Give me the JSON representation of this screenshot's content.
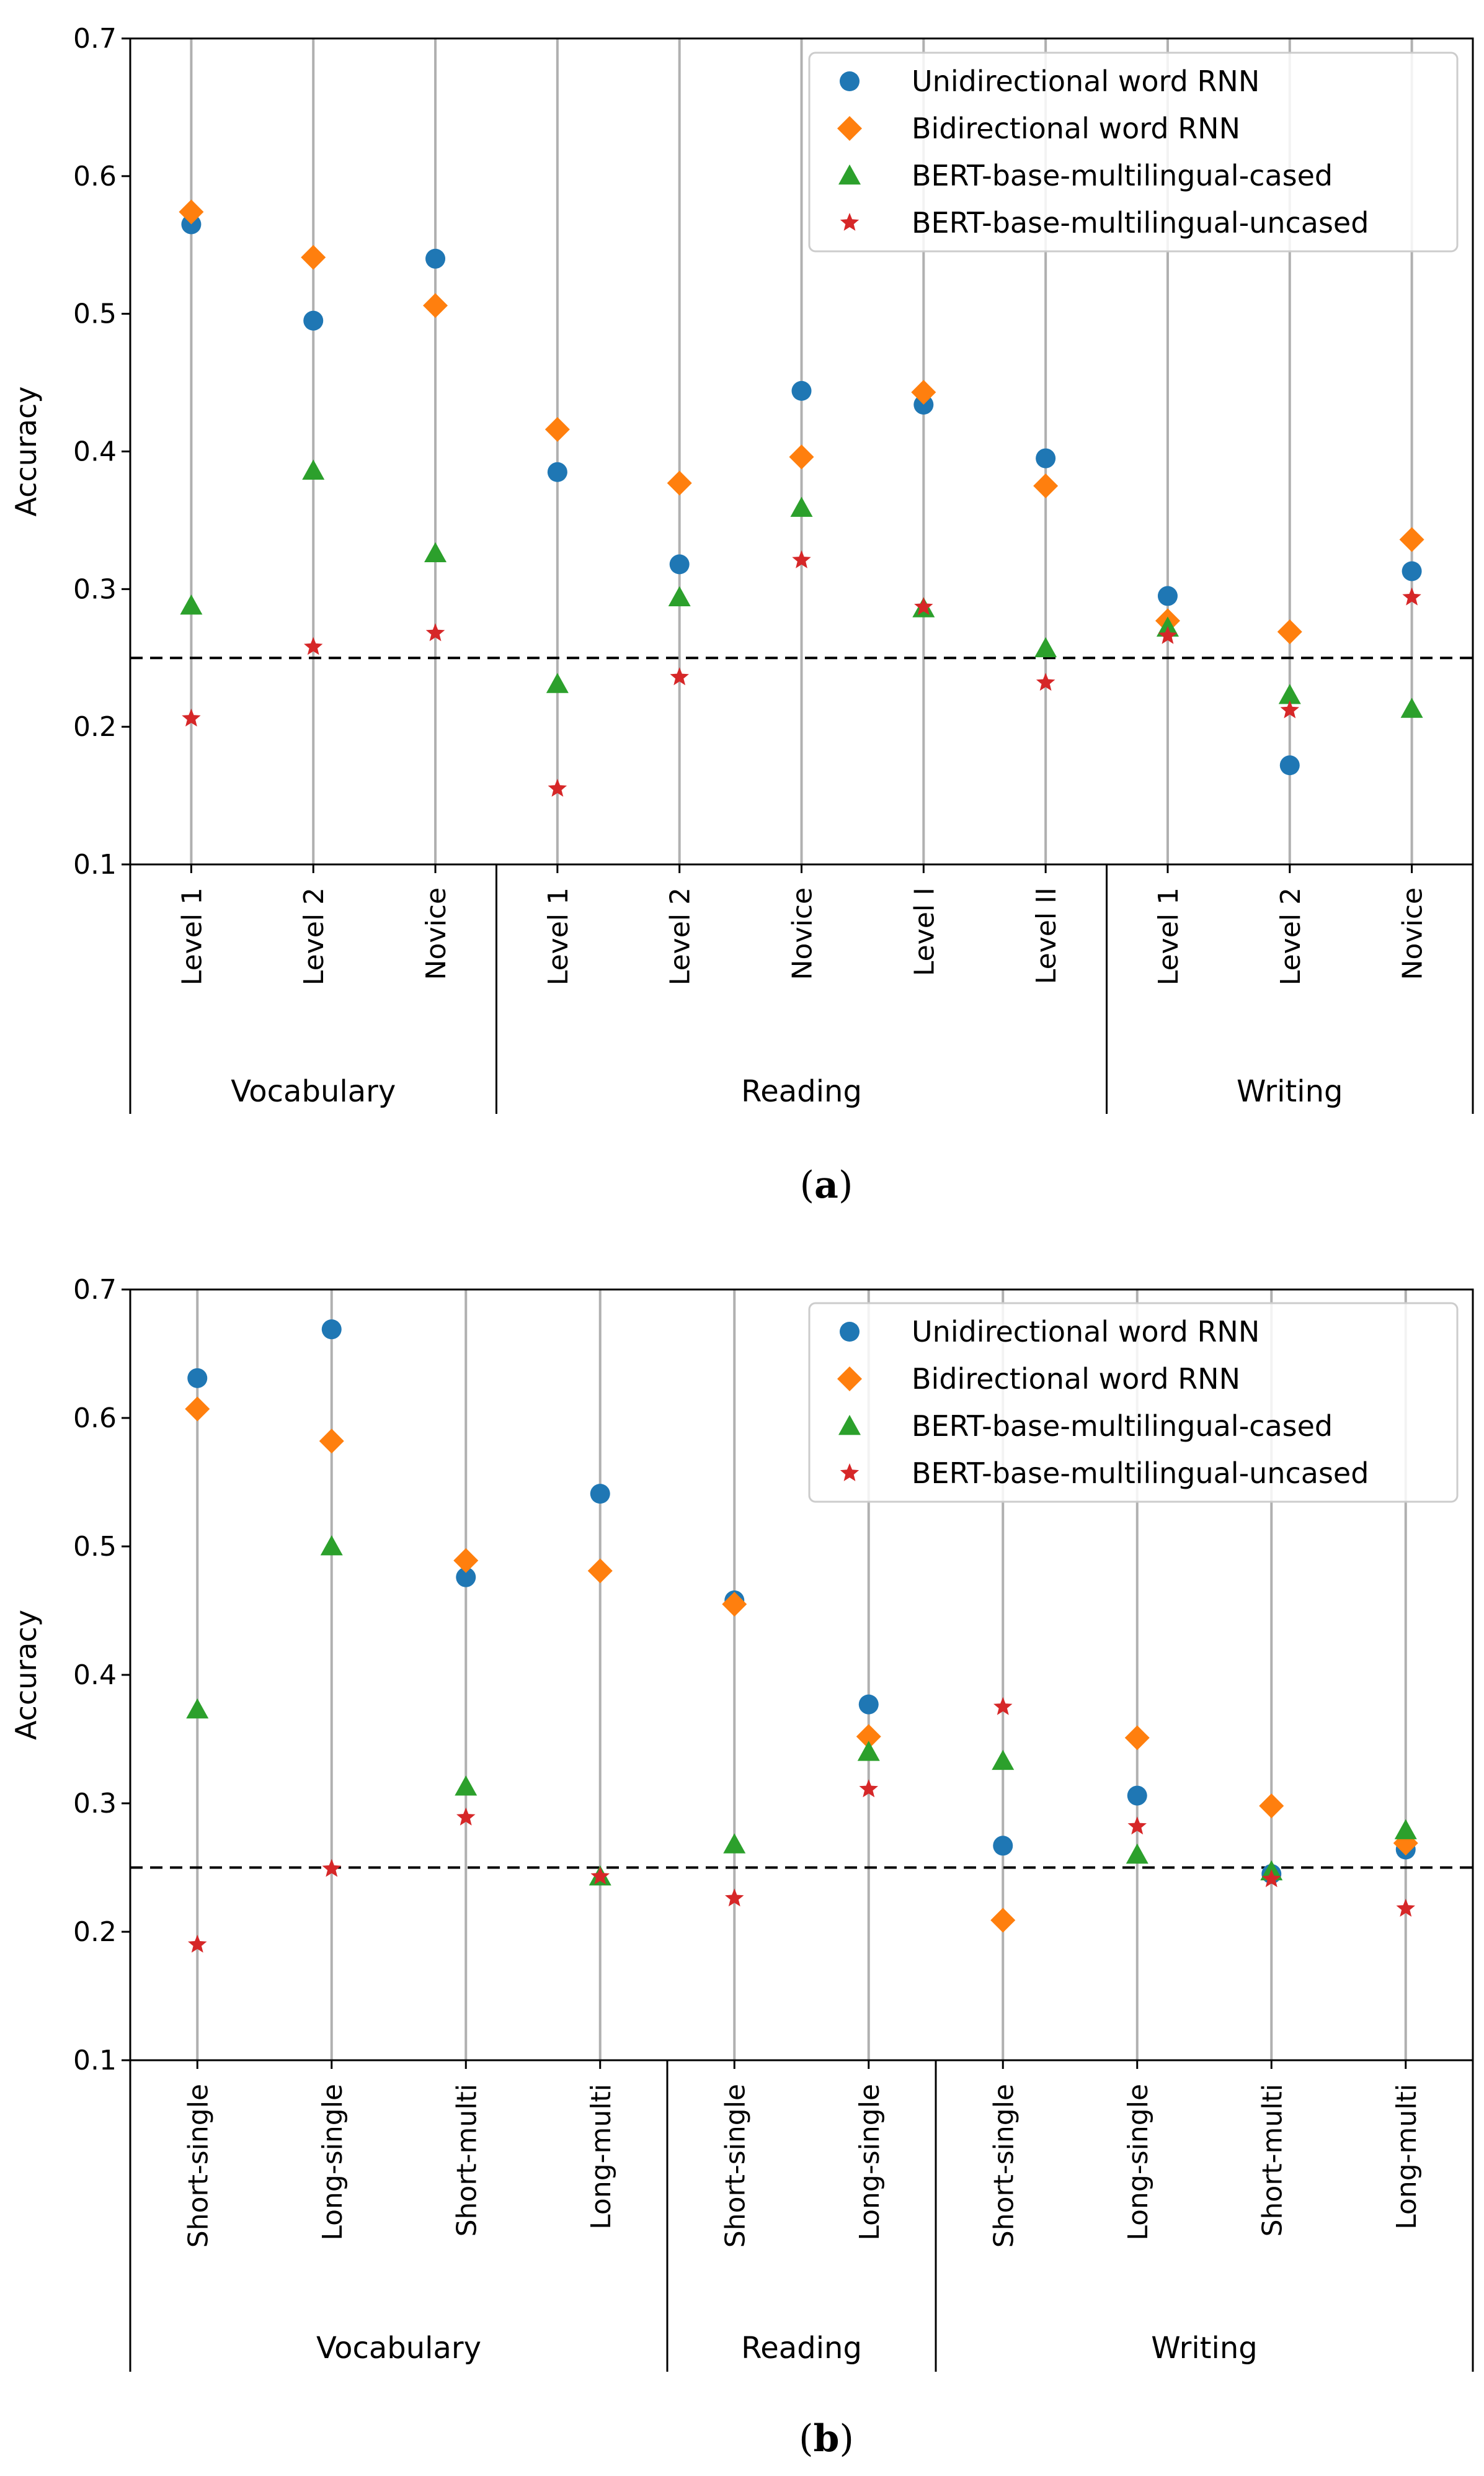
{
  "chart_data": [
    {
      "type": "scatter",
      "panel": "a",
      "caption": "(a)",
      "caption_letter": "a",
      "xlabel": "",
      "ylabel": "Accuracy",
      "ylim": [
        0.1,
        0.7
      ],
      "yticks": [
        0.1,
        0.2,
        0.3,
        0.4,
        0.5,
        0.6,
        0.7
      ],
      "ytick_labels": [
        "0.1",
        "0.2",
        "0.3",
        "0.4",
        "0.5",
        "0.6",
        "0.7"
      ],
      "baseline": 0.25,
      "grid": "vertical",
      "legend_position": "top-right",
      "categories": [
        "Level 1",
        "Level 2",
        "Novice",
        "Level 1",
        "Level 2",
        "Novice",
        "Level I",
        "Level II",
        "Level 1",
        "Level 2",
        "Novice"
      ],
      "groups": [
        {
          "name": "Vocabulary",
          "count": 3
        },
        {
          "name": "Reading",
          "count": 5
        },
        {
          "name": "Writing",
          "count": 3
        }
      ],
      "series": [
        {
          "name": "Unidirectional word RNN",
          "marker": "circle",
          "color": "#1f77b4",
          "values": [
            0.565,
            0.495,
            0.54,
            0.385,
            0.318,
            0.444,
            0.434,
            0.395,
            0.295,
            0.172,
            0.313
          ]
        },
        {
          "name": "Bidirectional word RNN",
          "marker": "diamond",
          "color": "#ff7f0e",
          "values": [
            0.574,
            0.541,
            0.506,
            0.416,
            0.377,
            0.396,
            0.443,
            0.375,
            0.277,
            0.269,
            0.336
          ]
        },
        {
          "name": "BERT-base-multilingual-cased",
          "marker": "triangle",
          "color": "#2ca02c",
          "values": [
            0.288,
            0.386,
            0.326,
            0.231,
            0.294,
            0.359,
            0.286,
            0.257,
            0.272,
            0.223,
            0.213
          ]
        },
        {
          "name": "BERT-base-multilingual-uncased",
          "marker": "star",
          "color": "#d62728",
          "values": [
            0.206,
            0.258,
            0.268,
            0.155,
            0.236,
            0.321,
            0.287,
            0.232,
            0.266,
            0.212,
            0.294
          ]
        }
      ]
    },
    {
      "type": "scatter",
      "panel": "b",
      "caption": "(b)",
      "caption_letter": "b",
      "xlabel": "",
      "ylabel": "Accuracy",
      "ylim": [
        0.1,
        0.7
      ],
      "yticks": [
        0.1,
        0.2,
        0.3,
        0.4,
        0.5,
        0.6,
        0.7
      ],
      "ytick_labels": [
        "0.1",
        "0.2",
        "0.3",
        "0.4",
        "0.5",
        "0.6",
        "0.7"
      ],
      "baseline": 0.25,
      "grid": "vertical",
      "legend_position": "top-right",
      "categories": [
        "Short-single",
        "Long-single",
        "Short-multi",
        "Long-multi",
        "Short-single",
        "Long-single",
        "Short-single",
        "Long-single",
        "Short-multi",
        "Long-multi"
      ],
      "groups": [
        {
          "name": "Vocabulary",
          "count": 4
        },
        {
          "name": "Reading",
          "count": 2
        },
        {
          "name": "Writing",
          "count": 4
        }
      ],
      "series": [
        {
          "name": "Unidirectional word RNN",
          "marker": "circle",
          "color": "#1f77b4",
          "values": [
            0.631,
            0.669,
            0.476,
            0.541,
            0.458,
            0.377,
            0.267,
            0.306,
            0.245,
            0.264
          ]
        },
        {
          "name": "Bidirectional word RNN",
          "marker": "diamond",
          "color": "#ff7f0e",
          "values": [
            0.607,
            0.582,
            0.489,
            0.481,
            0.455,
            0.352,
            0.209,
            0.351,
            0.298,
            0.269
          ]
        },
        {
          "name": "BERT-base-multilingual-cased",
          "marker": "triangle",
          "color": "#2ca02c",
          "values": [
            0.373,
            0.5,
            0.313,
            0.243,
            0.268,
            0.34,
            0.333,
            0.26,
            0.247,
            0.279
          ]
        },
        {
          "name": "BERT-base-multilingual-uncased",
          "marker": "star",
          "color": "#d62728",
          "values": [
            0.19,
            0.249,
            0.289,
            0.243,
            0.226,
            0.311,
            0.375,
            0.282,
            0.241,
            0.218
          ]
        }
      ]
    }
  ]
}
